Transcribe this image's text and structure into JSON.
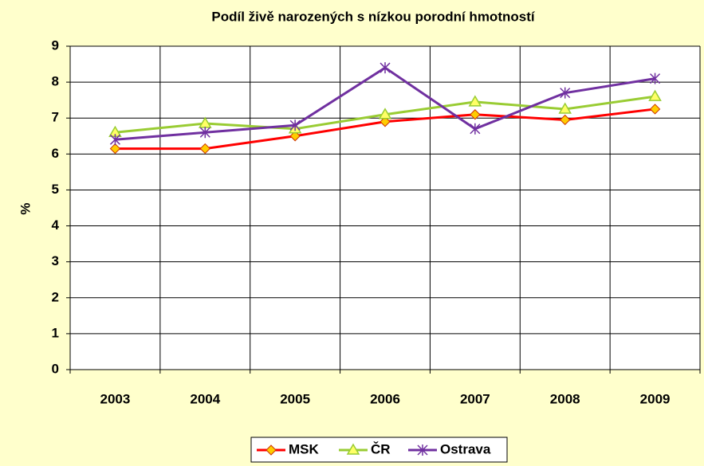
{
  "chart_data": {
    "type": "line",
    "title": "Podíl živě narozených s nízkou porodní hmotností",
    "ylabel": "%",
    "categories": [
      "2003",
      "2004",
      "2005",
      "2006",
      "2007",
      "2008",
      "2009"
    ],
    "series": [
      {
        "name": "MSK",
        "color": "#ff0000",
        "marker": "diamond",
        "marker_fill": "#ffcc00",
        "values": [
          6.15,
          6.15,
          6.5,
          6.9,
          7.1,
          6.95,
          7.25
        ]
      },
      {
        "name": "ČR",
        "color": "#99cc33",
        "marker": "triangle",
        "marker_fill": "#ffff66",
        "values": [
          6.6,
          6.85,
          6.7,
          7.1,
          7.45,
          7.25,
          7.6
        ]
      },
      {
        "name": "Ostrava",
        "color": "#7030a0",
        "marker": "star",
        "marker_fill": "none",
        "values": [
          6.4,
          6.6,
          6.8,
          8.4,
          6.7,
          7.7,
          8.1
        ]
      }
    ],
    "ylim": [
      0,
      9
    ],
    "yticks": [
      0,
      1,
      2,
      3,
      4,
      5,
      6,
      7,
      8,
      9
    ],
    "grid": true,
    "legend": "bottom"
  }
}
